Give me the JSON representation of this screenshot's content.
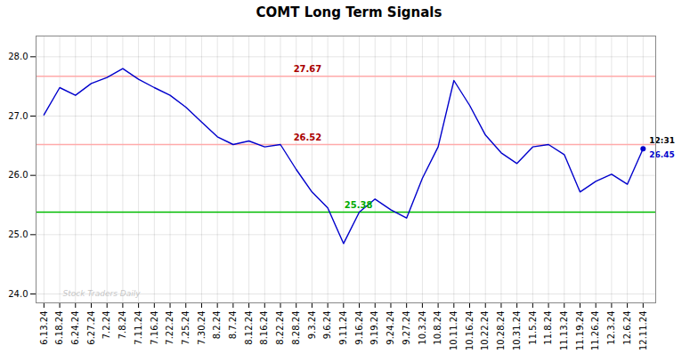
{
  "chart_data": {
    "type": "line",
    "title": "COMT Long Term Signals",
    "categories": [
      "6.13.24",
      "6.18.24",
      "6.24.24",
      "6.27.24",
      "7.2.24",
      "7.8.24",
      "7.11.24",
      "7.16.24",
      "7.22.24",
      "7.25.24",
      "7.30.24",
      "8.2.24",
      "8.7.24",
      "8.12.24",
      "8.16.24",
      "8.22.24",
      "8.28.24",
      "9.3.24",
      "9.6.24",
      "9.11.24",
      "9.16.24",
      "9.19.24",
      "9.24.24",
      "9.27.24",
      "10.3.24",
      "10.8.24",
      "10.11.24",
      "10.16.24",
      "10.22.24",
      "10.28.24",
      "10.31.24",
      "11.5.24",
      "11.8.24",
      "11.13.24",
      "11.19.24",
      "11.26.24",
      "12.3.24",
      "12.6.24",
      "12.11.24"
    ],
    "values": [
      27.02,
      27.48,
      27.35,
      27.55,
      27.65,
      27.8,
      27.62,
      27.48,
      27.35,
      27.15,
      26.9,
      26.65,
      26.52,
      26.58,
      26.48,
      26.52,
      26.1,
      25.72,
      25.45,
      24.85,
      25.38,
      25.6,
      25.42,
      25.28,
      25.95,
      26.48,
      27.6,
      27.18,
      26.68,
      26.38,
      26.2,
      26.48,
      26.52,
      26.35,
      25.72,
      25.9,
      26.02,
      25.85,
      26.45
    ],
    "color": "#0000cc",
    "ylim": [
      23.85,
      28.35
    ],
    "yticks": [
      24,
      25,
      26,
      27,
      28
    ],
    "grid": true,
    "reference_lines": [
      {
        "value": 27.67,
        "color": "#ffaaaa",
        "label_color": "#aa0000"
      },
      {
        "value": 26.52,
        "color": "#ffaaaa",
        "label_color": "#aa0000"
      },
      {
        "value": 25.38,
        "color": "#00bb00",
        "label_color": "#00aa00"
      }
    ],
    "end_annotation": {
      "time": "12:31",
      "price": "26.45",
      "color": "#0000cc"
    },
    "watermark": {
      "text": "Stock Traders Daily",
      "color": "#bbbbbb"
    }
  }
}
